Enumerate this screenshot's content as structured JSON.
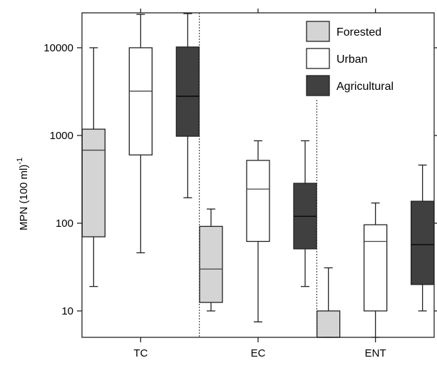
{
  "chart_data": {
    "type": "box",
    "title": "",
    "ylabel": "MPN (100 ml)",
    "ylabel_superscript": "-1",
    "yscale": "log",
    "ylim": [
      5,
      25000
    ],
    "yticks": [
      {
        "value": 10,
        "label": "10"
      },
      {
        "value": 100,
        "label": "100"
      },
      {
        "value": 1000,
        "label": "1000"
      },
      {
        "value": 10000,
        "label": "10000"
      }
    ],
    "categories": [
      "TC",
      "EC",
      "ENT"
    ],
    "legend": {
      "position": "top-right"
    },
    "grid": false,
    "series": [
      {
        "name": "Forested",
        "color": "#d4d4d4",
        "boxes": [
          {
            "min": 19,
            "q1": 70,
            "median": 680,
            "q3": 1180,
            "max": 10000
          },
          {
            "min": 10,
            "q1": 12.5,
            "median": 30,
            "q3": 92,
            "max": 145
          },
          {
            "min": 5,
            "q1": 5,
            "median": 5,
            "q3": 10,
            "max": 31
          }
        ]
      },
      {
        "name": "Urban",
        "color": "#ffffff",
        "boxes": [
          {
            "min": 46,
            "q1": 600,
            "median": 3200,
            "q3": 10000,
            "max": 24000
          },
          {
            "min": 7.5,
            "q1": 62,
            "median": 245,
            "q3": 520,
            "max": 870
          },
          {
            "min": 5,
            "q1": 10,
            "median": 62,
            "q3": 96,
            "max": 170
          }
        ]
      },
      {
        "name": "Agricultural",
        "color": "#404040",
        "boxes": [
          {
            "min": 195,
            "q1": 980,
            "median": 2800,
            "q3": 10200,
            "max": 24500
          },
          {
            "min": 19,
            "q1": 51,
            "median": 120,
            "q3": 285,
            "max": 870
          },
          {
            "min": 10,
            "q1": 20,
            "median": 57,
            "q3": 178,
            "max": 460
          }
        ]
      }
    ]
  }
}
